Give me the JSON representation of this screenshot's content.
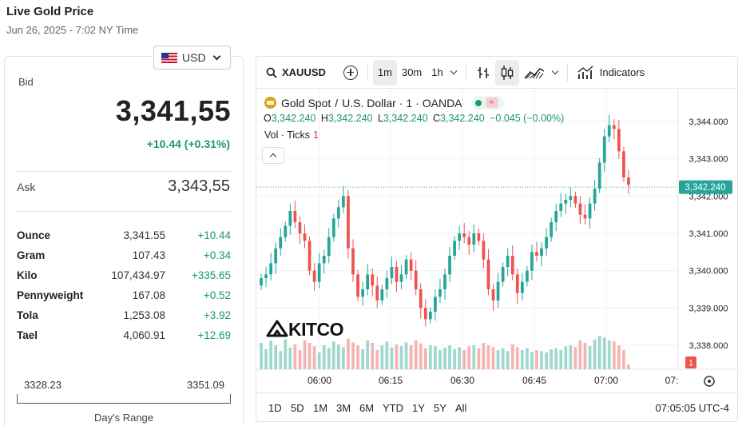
{
  "header": {
    "title": "Live Gold Price",
    "subtitle": "Jun 26, 2025 - 7:02 NY Time"
  },
  "currency": {
    "selected": "USD"
  },
  "quote": {
    "bid_label": "Bid",
    "bid": "3,341,55",
    "bid_change": "+10.44 (+0.31%)",
    "ask_label": "Ask",
    "ask": "3,343,55"
  },
  "units": [
    {
      "name": "Ounce",
      "price": "3,341.55",
      "change": "+10.44"
    },
    {
      "name": "Gram",
      "price": "107.43",
      "change": "+0.34"
    },
    {
      "name": "Kilo",
      "price": "107,434.97",
      "change": "+335.65"
    },
    {
      "name": "Pennyweight",
      "price": "167.08",
      "change": "+0.52"
    },
    {
      "name": "Tola",
      "price": "1,253.08",
      "change": "+3.92"
    },
    {
      "name": "Tael",
      "price": "4,060.91",
      "change": "+12.69"
    }
  ],
  "days_range": {
    "low": "3328.23",
    "high": "3351.09",
    "label": "Day's Range"
  },
  "toolbar": {
    "symbol": "XAUUSD",
    "intervals": [
      "1m",
      "30m",
      "1h"
    ],
    "active_interval": "1m",
    "indicators_label": "Indicators"
  },
  "legend": {
    "instrument": "Gold Spot",
    "sep1": "/",
    "pair": "U.S. Dollar",
    "interval": "· 1 ·",
    "source": "OANDA",
    "status_glyph": "≈",
    "o_label": "O",
    "o": "3,342.240",
    "h_label": "H",
    "h": "3,342.240",
    "l_label": "L",
    "l": "3,342.240",
    "c_label": "C",
    "c": "3,342.240",
    "change": "−0.045 (−0.00%)",
    "vol_label": "Vol · Ticks",
    "vol_value": "1"
  },
  "watermark": "KITCO",
  "bottom": {
    "ranges": [
      "1D",
      "5D",
      "1M",
      "3M",
      "6M",
      "YTD",
      "1Y",
      "5Y",
      "All"
    ],
    "clock": "07:05:05 UTC-4"
  },
  "colors": {
    "up": "#26a69a",
    "down": "#ef5350",
    "up_vol": "#9fd8cf",
    "down_vol": "#f5b4b3",
    "accent": "#1a9a6c"
  },
  "chart_data": {
    "type": "candlestick",
    "x_tick_labels": [
      "06:00",
      "06:15",
      "06:30",
      "06:45",
      "07:00",
      "07:"
    ],
    "y_tick_labels": [
      "3,344.000",
      "3,343.000",
      "3,342.000",
      "3,341.000",
      "3,340.000",
      "3,339.000",
      "3,338.000"
    ],
    "ylim": [
      3337.4,
      3344.6
    ],
    "last_price": "3,342.240",
    "last_volume": "1",
    "closes": [
      3339.8,
      3339.9,
      3340.2,
      3340.6,
      3340.9,
      3341.2,
      3341.6,
      3341.3,
      3341.0,
      3340.8,
      3340.0,
      3339.7,
      3340.2,
      3340.4,
      3340.9,
      3341.4,
      3341.7,
      3342.0,
      3340.6,
      3339.9,
      3339.3,
      3339.5,
      3339.9,
      3339.6,
      3339.2,
      3339.5,
      3339.8,
      3340.1,
      3339.7,
      3339.9,
      3340.3,
      3340.0,
      3339.5,
      3339.0,
      3338.7,
      3338.9,
      3339.3,
      3339.5,
      3339.9,
      3340.4,
      3340.8,
      3341.0,
      3340.9,
      3340.7,
      3341.0,
      3340.8,
      3340.3,
      3339.5,
      3339.2,
      3339.7,
      3340.1,
      3340.4,
      3339.9,
      3339.4,
      3339.7,
      3340.0,
      3340.5,
      3340.4,
      3340.6,
      3340.9,
      3341.3,
      3341.6,
      3341.8,
      3341.9,
      3342.0,
      3341.8,
      3341.5,
      3341.4,
      3341.8,
      3342.2,
      3342.9,
      3343.6,
      3343.9,
      3343.8,
      3343.2,
      3342.5,
      3342.3
    ],
    "volumes": [
      0.55,
      0.42,
      0.6,
      0.5,
      0.38,
      0.62,
      0.45,
      0.52,
      0.4,
      0.6,
      0.55,
      0.48,
      0.35,
      0.5,
      0.44,
      0.58,
      0.52,
      0.46,
      0.64,
      0.56,
      0.5,
      0.42,
      0.6,
      0.55,
      0.4,
      0.5,
      0.58,
      0.46,
      0.52,
      0.48,
      0.56,
      0.5,
      0.6,
      0.54,
      0.44,
      0.5,
      0.48,
      0.4,
      0.45,
      0.5,
      0.42,
      0.46,
      0.4,
      0.48,
      0.5,
      0.44,
      0.55,
      0.5,
      0.46,
      0.4,
      0.44,
      0.38,
      0.52,
      0.46,
      0.4,
      0.44,
      0.36,
      0.4,
      0.38,
      0.35,
      0.42,
      0.44,
      0.4,
      0.48,
      0.5,
      0.46,
      0.6,
      0.55,
      0.48,
      0.62,
      0.7,
      0.66,
      0.6,
      0.58,
      0.5,
      0.4,
      0.1
    ]
  }
}
